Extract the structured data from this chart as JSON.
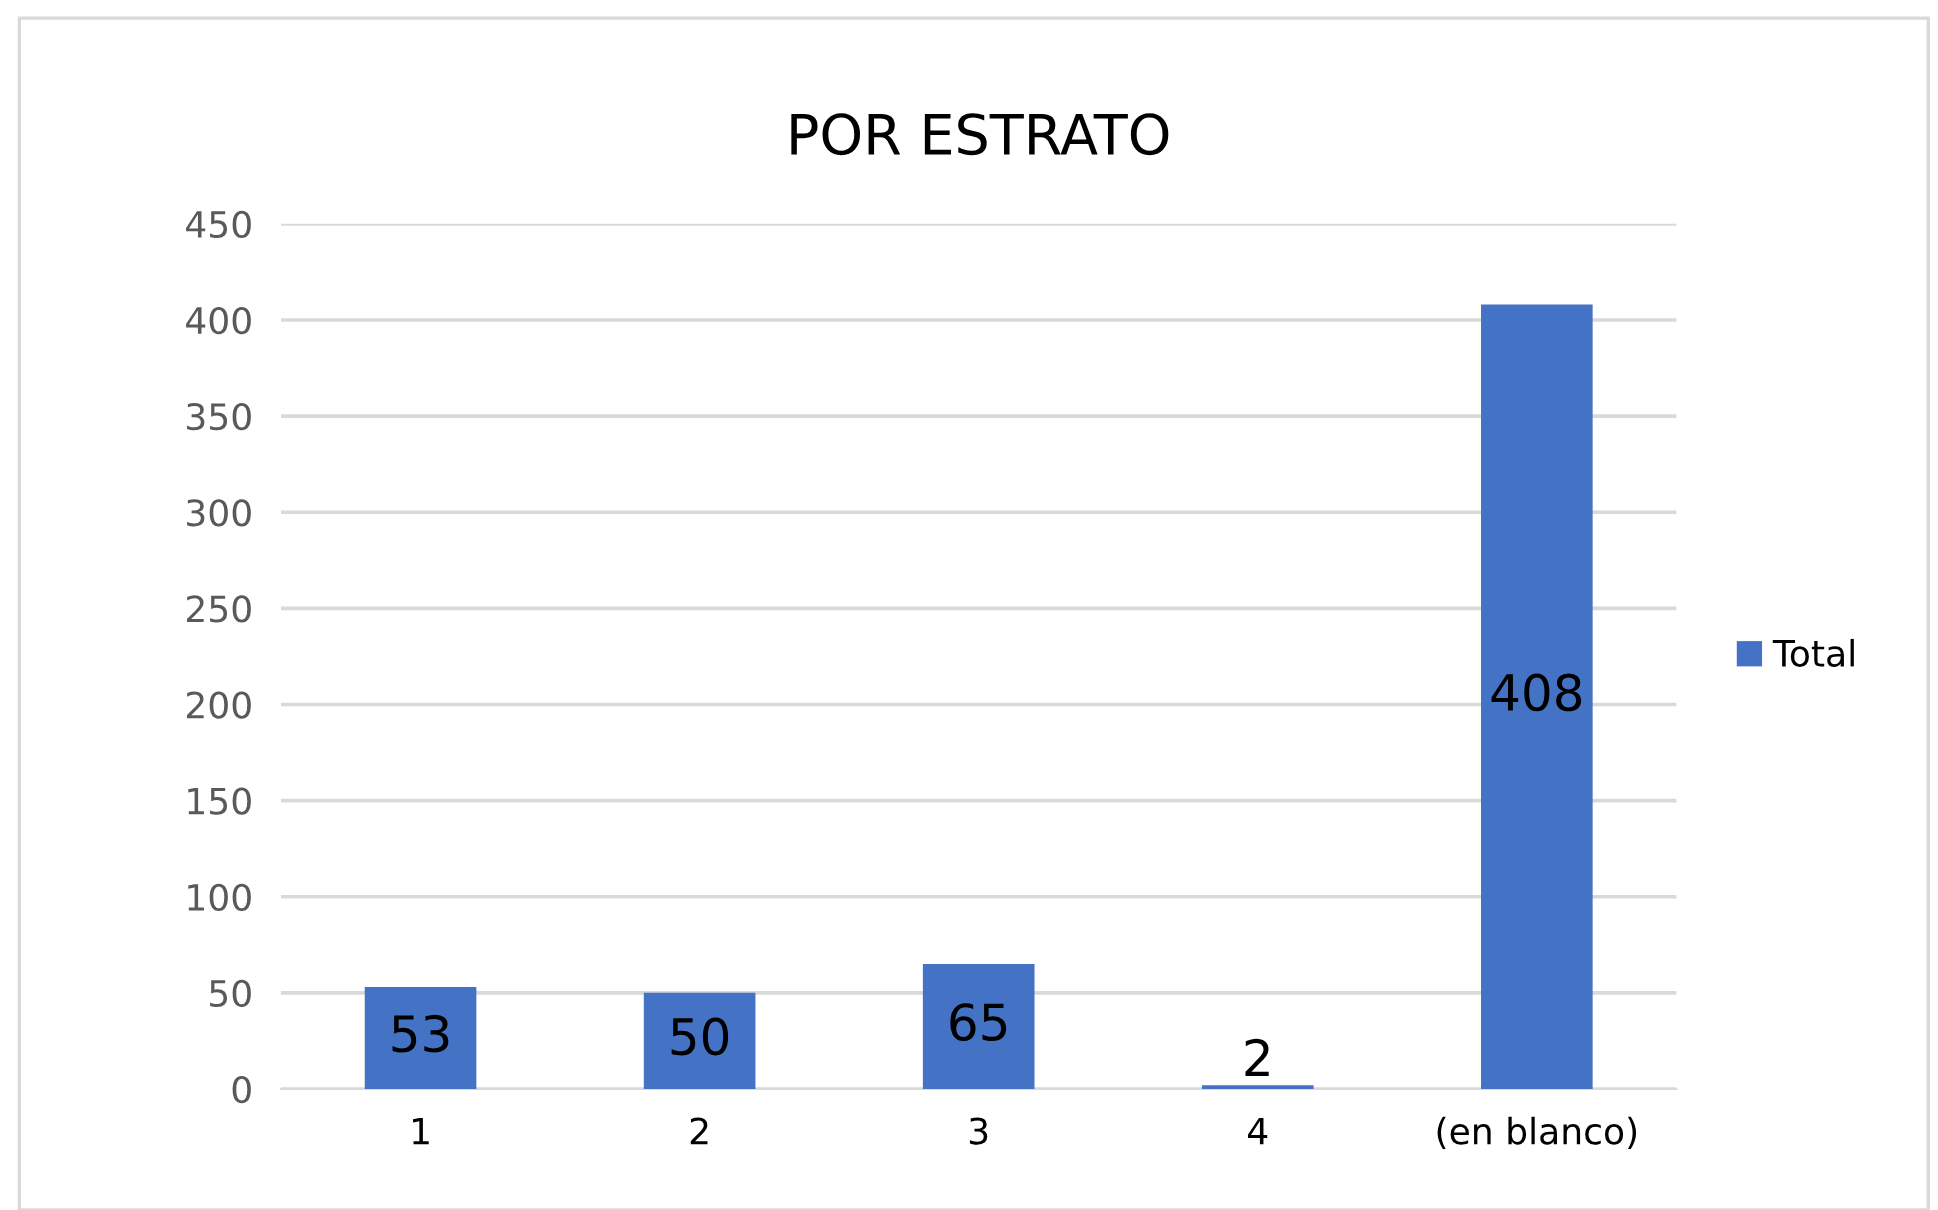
{
  "chart_data": {
    "type": "bar",
    "title": "POR ESTRATO",
    "categories": [
      "1",
      "2",
      "3",
      "4",
      "(en blanco)"
    ],
    "series": [
      {
        "name": "Total",
        "color": "#4472c4",
        "values": [
          53,
          50,
          65,
          2,
          408
        ]
      }
    ],
    "ylim": [
      0,
      450
    ],
    "yticks": [
      0,
      50,
      100,
      150,
      200,
      250,
      300,
      350,
      400,
      450
    ],
    "grid": "y",
    "legend": "right",
    "data_labels": true
  }
}
